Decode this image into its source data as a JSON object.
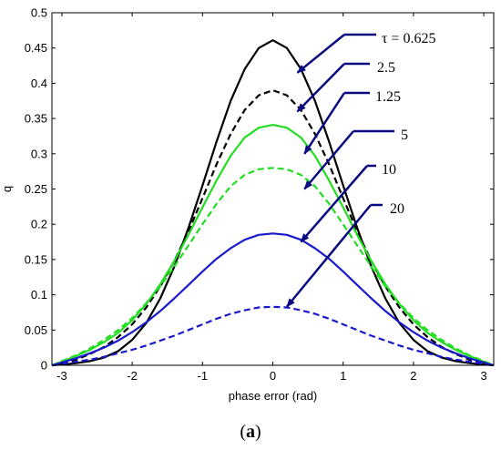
{
  "chart_data": {
    "type": "line",
    "title": "",
    "xlabel": "phase error (rad)",
    "ylabel": "q",
    "xlim": [
      -3.1416,
      3.1416
    ],
    "ylim": [
      0,
      0.5
    ],
    "xticks": [
      -3,
      -2,
      -1,
      0,
      1,
      2,
      3
    ],
    "xtick_labels": [
      "-3",
      "-2",
      "-1",
      "0",
      "1",
      "2",
      "3"
    ],
    "yticks": [
      0,
      0.05,
      0.1,
      0.15,
      0.2,
      0.25,
      0.3,
      0.35,
      0.4,
      0.45,
      0.5
    ],
    "ytick_labels": [
      "0",
      "0.05",
      "0.1",
      "0.15",
      "0.2",
      "0.25",
      "0.3",
      "0.35",
      "0.4",
      "0.45",
      "0.5"
    ],
    "grid": false,
    "x": [
      -3.1416,
      -3.0,
      -2.8,
      -2.6,
      -2.4,
      -2.2,
      -2.0,
      -1.8,
      -1.6,
      -1.4,
      -1.2,
      -1.0,
      -0.8,
      -0.6,
      -0.4,
      -0.2,
      0.0,
      0.2,
      0.4,
      0.6,
      0.8,
      1.0,
      1.2,
      1.4,
      1.6,
      1.8,
      2.0,
      2.2,
      2.4,
      2.6,
      2.8,
      3.0,
      3.1416
    ],
    "series": [
      {
        "name": "τ = 0.625",
        "color": "#000000",
        "dash": "solid",
        "values": [
          0.0,
          0.001,
          0.003,
          0.006,
          0.011,
          0.02,
          0.036,
          0.06,
          0.095,
          0.14,
          0.195,
          0.255,
          0.317,
          0.375,
          0.42,
          0.45,
          0.461,
          0.45,
          0.42,
          0.375,
          0.317,
          0.255,
          0.195,
          0.14,
          0.095,
          0.06,
          0.036,
          0.02,
          0.011,
          0.006,
          0.003,
          0.001,
          0.0
        ]
      },
      {
        "name": "2.5",
        "color": "#000000",
        "dash": "dashed",
        "values": [
          0.0,
          0.003,
          0.008,
          0.016,
          0.026,
          0.04,
          0.058,
          0.082,
          0.112,
          0.148,
          0.19,
          0.237,
          0.285,
          0.328,
          0.362,
          0.383,
          0.39,
          0.383,
          0.362,
          0.328,
          0.285,
          0.237,
          0.19,
          0.148,
          0.112,
          0.082,
          0.058,
          0.04,
          0.026,
          0.016,
          0.008,
          0.003,
          0.0
        ]
      },
      {
        "name": "1.25",
        "color": "#22dd22",
        "dash": "solid",
        "values": [
          0.0,
          0.005,
          0.013,
          0.022,
          0.033,
          0.046,
          0.064,
          0.087,
          0.115,
          0.148,
          0.185,
          0.224,
          0.262,
          0.297,
          0.323,
          0.337,
          0.341,
          0.337,
          0.323,
          0.297,
          0.262,
          0.224,
          0.185,
          0.148,
          0.115,
          0.087,
          0.064,
          0.046,
          0.033,
          0.022,
          0.013,
          0.005,
          0.0
        ]
      },
      {
        "name": "5",
        "color": "#22dd22",
        "dash": "dashed",
        "values": [
          0.0,
          0.006,
          0.014,
          0.024,
          0.036,
          0.05,
          0.067,
          0.088,
          0.112,
          0.14,
          0.17,
          0.2,
          0.229,
          0.254,
          0.27,
          0.278,
          0.28,
          0.278,
          0.27,
          0.254,
          0.229,
          0.2,
          0.17,
          0.14,
          0.112,
          0.088,
          0.067,
          0.05,
          0.036,
          0.024,
          0.014,
          0.006,
          0.0
        ]
      },
      {
        "name": "10",
        "color": "#1a1acc",
        "dash": "solid",
        "values": [
          0.0,
          0.004,
          0.01,
          0.017,
          0.025,
          0.035,
          0.047,
          0.061,
          0.077,
          0.095,
          0.114,
          0.133,
          0.151,
          0.166,
          0.178,
          0.185,
          0.187,
          0.185,
          0.178,
          0.166,
          0.151,
          0.133,
          0.114,
          0.095,
          0.077,
          0.061,
          0.047,
          0.035,
          0.025,
          0.017,
          0.01,
          0.004,
          0.0
        ]
      },
      {
        "name": "20",
        "color": "#1a1acc",
        "dash": "dashed",
        "values": [
          0.0,
          0.002,
          0.005,
          0.008,
          0.012,
          0.017,
          0.022,
          0.028,
          0.035,
          0.042,
          0.05,
          0.058,
          0.066,
          0.073,
          0.078,
          0.082,
          0.083,
          0.082,
          0.078,
          0.073,
          0.066,
          0.058,
          0.05,
          0.042,
          0.035,
          0.028,
          0.022,
          0.017,
          0.012,
          0.008,
          0.005,
          0.002,
          0.0
        ]
      }
    ],
    "annotations": [
      {
        "text": "τ = 0.625",
        "series": "τ = 0.625",
        "target": [
          0.35,
          0.415
        ]
      },
      {
        "text": "2.5",
        "series": "2.5",
        "target": [
          0.35,
          0.36
        ]
      },
      {
        "text": "1.25",
        "series": "1.25",
        "target": [
          0.45,
          0.3
        ]
      },
      {
        "text": "5",
        "series": "5",
        "target": [
          0.45,
          0.25
        ]
      },
      {
        "text": "10",
        "series": "10",
        "target": [
          0.4,
          0.175
        ]
      },
      {
        "text": "20",
        "series": "20",
        "target": [
          0.2,
          0.083
        ]
      }
    ],
    "panel_label": "(a)"
  }
}
